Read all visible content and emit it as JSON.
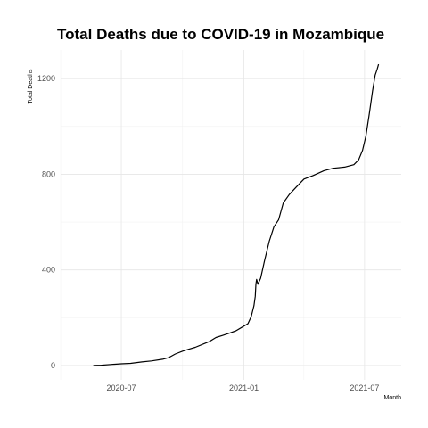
{
  "chart_data": {
    "type": "line",
    "title": "Total Deaths due to COVID-19 in Mozambique",
    "xlabel": "Month",
    "ylabel": "Total Deaths",
    "x_tick_labels": [
      "2020-07",
      "2021-01",
      "2021-07"
    ],
    "x_ticks": [
      "2020-07-01",
      "2021-01-01",
      "2021-07-01"
    ],
    "y_ticks": [
      0,
      400,
      800,
      1200
    ],
    "y_tick_labels": [
      "0",
      "400",
      "800",
      "1200"
    ],
    "xlim": [
      "2020-04-01",
      "2021-08-25"
    ],
    "ylim": [
      -60,
      1320
    ],
    "grid": true,
    "series": [
      {
        "x": [
          "2020-05-20",
          "2020-06-01",
          "2020-06-15",
          "2020-07-01",
          "2020-07-15",
          "2020-08-01",
          "2020-08-15",
          "2020-09-01",
          "2020-09-10",
          "2020-09-20",
          "2020-10-01",
          "2020-10-10",
          "2020-10-20",
          "2020-11-01",
          "2020-11-10",
          "2020-11-20",
          "2020-12-01",
          "2020-12-10",
          "2020-12-20",
          "2021-01-01",
          "2021-01-07",
          "2021-01-12",
          "2021-01-16",
          "2021-01-18",
          "2021-01-19",
          "2021-01-20",
          "2021-01-22",
          "2021-01-26",
          "2021-02-01",
          "2021-02-08",
          "2021-02-15",
          "2021-02-22",
          "2021-03-01",
          "2021-03-10",
          "2021-03-20",
          "2021-04-01",
          "2021-04-15",
          "2021-05-01",
          "2021-05-15",
          "2021-06-01",
          "2021-06-15",
          "2021-06-22",
          "2021-06-28",
          "2021-07-03",
          "2021-07-08",
          "2021-07-13",
          "2021-07-17",
          "2021-07-20",
          "2021-07-22"
        ],
        "values": [
          0,
          1,
          4,
          7,
          9,
          15,
          19,
          26,
          33,
          48,
          60,
          68,
          76,
          90,
          100,
          117,
          127,
          135,
          145,
          165,
          175,
          205,
          250,
          290,
          340,
          360,
          340,
          365,
          440,
          520,
          580,
          610,
          680,
          715,
          745,
          780,
          795,
          815,
          825,
          830,
          840,
          860,
          900,
          960,
          1050,
          1150,
          1215,
          1240,
          1260
        ]
      }
    ]
  }
}
